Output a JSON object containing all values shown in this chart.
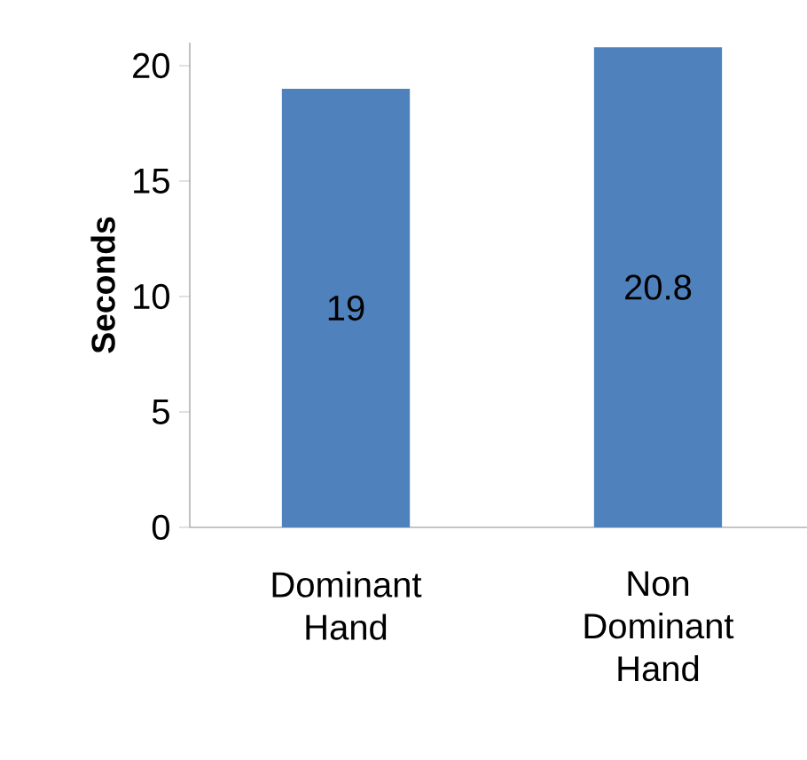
{
  "chart_data": {
    "type": "bar",
    "ylabel": "Seconds",
    "categories": [
      "Dominant Hand",
      "Non Dominant Hand"
    ],
    "values": [
      19,
      20.8
    ],
    "color": "#4f81bd",
    "ylim": [
      0,
      21
    ],
    "yticks": [
      0,
      5,
      10,
      15,
      20
    ],
    "data_labels": true
  }
}
